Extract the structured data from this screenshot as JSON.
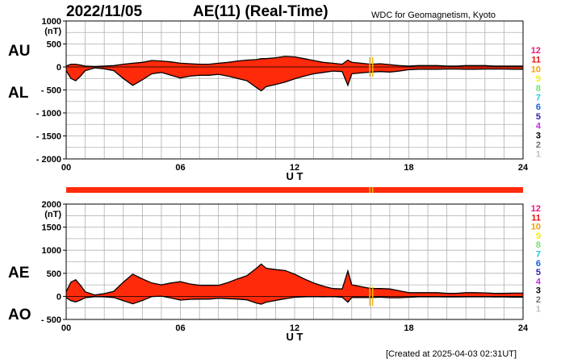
{
  "header": {
    "date": "2022/11/05",
    "title": "AE(11) (Real-Time)",
    "org": "WDC for Geomagnetism, Kyoto",
    "created": "[Created at 2025-04-03 02:31UT]"
  },
  "colors": {
    "fill": "#ff2a0a",
    "outline": "#000000",
    "grid": "#b0b0b0",
    "marker": "#f5b60a"
  },
  "stations": {
    "labels": [
      "12",
      "11",
      "10",
      "9",
      "8",
      "7",
      "6",
      "5",
      "4",
      "3",
      "2",
      "1"
    ],
    "colors": [
      "#e8167c",
      "#e81010",
      "#f5a000",
      "#f0f000",
      "#70e070",
      "#20c8e0",
      "#1060e0",
      "#3020b0",
      "#c030e0",
      "#000000",
      "#707070",
      "#c0c0c0"
    ]
  },
  "chart_data": [
    {
      "type": "area",
      "panel": "top",
      "left_labels": [
        "AU",
        "AL"
      ],
      "unit": "(nT)",
      "xlabel": "U T",
      "x_ticks": [
        "00",
        "06",
        "12",
        "18",
        "24"
      ],
      "xlim": [
        0,
        24
      ],
      "ylim": [
        -2000,
        1000
      ],
      "y_ticks": [
        "1000",
        "500",
        "0",
        "- 500",
        "- 1000",
        "- 1500",
        "- 2000"
      ],
      "x_hours": [
        0,
        0.25,
        0.5,
        0.75,
        1,
        1.5,
        2,
        2.5,
        3,
        3.5,
        4,
        4.5,
        5,
        5.5,
        6,
        6.5,
        7,
        7.5,
        8,
        8.5,
        9,
        9.5,
        10,
        10.25,
        10.5,
        11,
        11.5,
        12,
        12.5,
        13,
        13.5,
        14,
        14.5,
        14.8,
        15,
        15.5,
        16,
        16.5,
        17,
        17.5,
        18,
        18.5,
        19,
        19.5,
        20,
        20.5,
        21,
        21.5,
        22,
        22.5,
        23,
        23.5,
        24
      ],
      "series": [
        {
          "name": "AU",
          "values": [
            20,
            60,
            60,
            40,
            20,
            10,
            20,
            30,
            60,
            80,
            100,
            140,
            130,
            110,
            80,
            70,
            60,
            60,
            80,
            100,
            130,
            150,
            160,
            180,
            180,
            200,
            230,
            220,
            180,
            140,
            100,
            80,
            60,
            150,
            100,
            80,
            60,
            70,
            50,
            30,
            20,
            30,
            30,
            30,
            20,
            20,
            30,
            30,
            30,
            20,
            20,
            20,
            20
          ]
        },
        {
          "name": "AL",
          "values": [
            -80,
            -250,
            -300,
            -200,
            -80,
            -20,
            -40,
            -80,
            -250,
            -400,
            -280,
            -150,
            -120,
            -180,
            -240,
            -200,
            -180,
            -180,
            -160,
            -200,
            -250,
            -300,
            -450,
            -520,
            -430,
            -380,
            -330,
            -260,
            -200,
            -150,
            -120,
            -90,
            -100,
            -400,
            -150,
            -130,
            -110,
            -100,
            -110,
            -90,
            -60,
            -50,
            -50,
            -50,
            -45,
            -45,
            -50,
            -50,
            -45,
            -45,
            -45,
            -50,
            -50
          ]
        }
      ]
    },
    {
      "type": "area",
      "panel": "bottom",
      "left_labels": [
        "AE",
        "AO"
      ],
      "unit": "(nT)",
      "xlabel": "U T",
      "x_ticks": [
        "00",
        "06",
        "12",
        "18",
        "24"
      ],
      "xlim": [
        0,
        24
      ],
      "ylim": [
        -500,
        2000
      ],
      "y_ticks": [
        "2000",
        "1500",
        "1000",
        "500",
        "0",
        "- 500"
      ],
      "x_hours": [
        0,
        0.25,
        0.5,
        0.75,
        1,
        1.5,
        2,
        2.5,
        3,
        3.5,
        4,
        4.5,
        5,
        5.5,
        6,
        6.5,
        7,
        7.5,
        8,
        8.5,
        9,
        9.5,
        10,
        10.25,
        10.5,
        11,
        11.5,
        12,
        12.5,
        13,
        13.5,
        14,
        14.5,
        14.8,
        15,
        15.5,
        16,
        16.5,
        17,
        17.5,
        18,
        18.5,
        19,
        19.5,
        20,
        20.5,
        21,
        21.5,
        22,
        22.5,
        23,
        23.5,
        24
      ],
      "series": [
        {
          "name": "AE",
          "values": [
            100,
            310,
            360,
            240,
            100,
            30,
            60,
            110,
            310,
            480,
            380,
            290,
            250,
            290,
            320,
            270,
            240,
            240,
            240,
            300,
            380,
            450,
            610,
            700,
            610,
            580,
            560,
            480,
            380,
            290,
            220,
            170,
            160,
            550,
            250,
            210,
            170,
            170,
            160,
            120,
            80,
            80,
            80,
            80,
            65,
            65,
            80,
            80,
            75,
            65,
            65,
            70,
            70
          ]
        },
        {
          "name": "AO",
          "values": [
            -30,
            -95,
            -120,
            -80,
            -30,
            -5,
            -10,
            -25,
            -95,
            -160,
            -90,
            -5,
            5,
            -35,
            -80,
            -65,
            -60,
            -60,
            -40,
            -50,
            -60,
            -75,
            -145,
            -170,
            -125,
            -90,
            -50,
            -20,
            -10,
            -5,
            -10,
            -5,
            -20,
            -125,
            -25,
            -25,
            -25,
            -15,
            -30,
            -30,
            -20,
            -10,
            -10,
            -10,
            -12,
            -12,
            -10,
            -10,
            -8,
            -12,
            -12,
            -15,
            -15
          ]
        }
      ]
    }
  ],
  "status_bar": {
    "color": "#ff2a0a"
  }
}
